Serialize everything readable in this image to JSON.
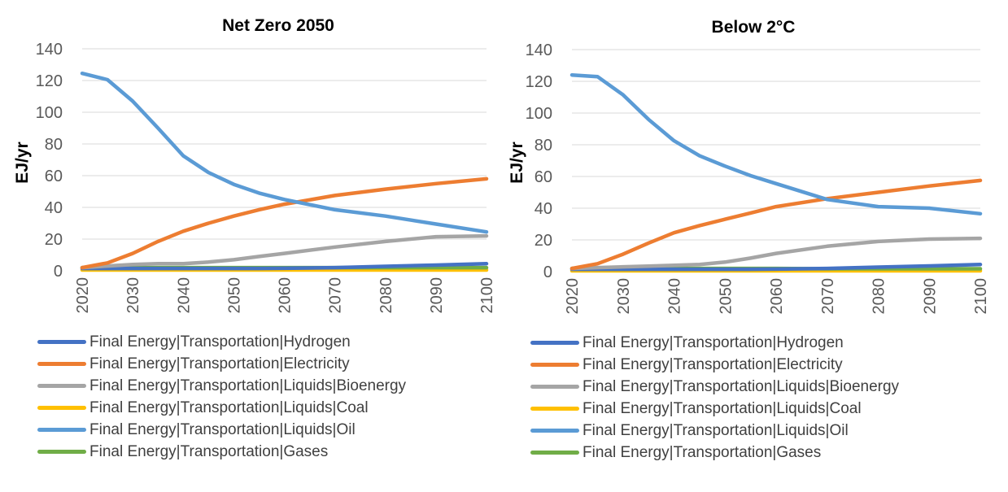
{
  "chart_data": [
    {
      "type": "line",
      "title": "Net Zero 2050",
      "ylabel": "EJ/yr",
      "xlabel": "",
      "ylim": [
        0,
        140
      ],
      "yticks": [
        0,
        20,
        40,
        60,
        80,
        100,
        120,
        140
      ],
      "xticks": [
        2020,
        2030,
        2040,
        2050,
        2060,
        2070,
        2080,
        2090,
        2100
      ],
      "x": [
        2020,
        2025,
        2030,
        2035,
        2040,
        2045,
        2050,
        2055,
        2060,
        2070,
        2080,
        2090,
        2100
      ],
      "grid": true,
      "legend_position": "bottom",
      "series": [
        {
          "name": "Final Energy|Transportation|Hydrogen",
          "color": "#4472C4",
          "values": [
            1.5,
            1.5,
            1.5,
            1.5,
            1.5,
            1.5,
            1.5,
            1.5,
            1.6,
            2,
            2.8,
            3.6,
            4.5
          ]
        },
        {
          "name": "Final Energy|Transportation|Electricity",
          "color": "#ED7D31",
          "values": [
            2,
            5,
            11,
            18.5,
            25,
            30,
            34.5,
            38.5,
            42,
            47.5,
            51.5,
            55,
            58
          ]
        },
        {
          "name": "Final Energy|Transportation|Liquids|Bioenergy",
          "color": "#A5A5A5",
          "values": [
            2,
            3,
            4,
            4.5,
            4.5,
            5.5,
            7,
            9,
            11,
            15,
            18.5,
            21.5,
            22
          ]
        },
        {
          "name": "Final Energy|Transportation|Liquids|Coal",
          "color": "#FFC000",
          "values": [
            0.5,
            0.5,
            0.5,
            0.5,
            0.5,
            0.5,
            0.5,
            0.5,
            0.5,
            0.5,
            0.5,
            0.5,
            0.5
          ]
        },
        {
          "name": "Final Energy|Transportation|Liquids|Oil",
          "color": "#5B9BD5",
          "values": [
            124.5,
            120.5,
            107,
            90,
            72.5,
            62,
            54.5,
            49,
            45,
            38.5,
            34.5,
            29.5,
            24.5
          ]
        },
        {
          "name": "Final Energy|Transportation|Gases",
          "color": "#70AD47",
          "values": [
            2,
            2,
            2,
            2,
            2,
            2,
            2,
            2,
            2,
            2,
            2,
            2,
            2
          ]
        }
      ]
    },
    {
      "type": "line",
      "title": "Below 2°C",
      "ylabel": "EJ/yr",
      "xlabel": "",
      "ylim": [
        0,
        140
      ],
      "yticks": [
        0,
        20,
        40,
        60,
        80,
        100,
        120,
        140
      ],
      "xticks": [
        2020,
        2030,
        2040,
        2050,
        2060,
        2070,
        2080,
        2090,
        2100
      ],
      "x": [
        2020,
        2025,
        2030,
        2035,
        2040,
        2045,
        2050,
        2055,
        2060,
        2070,
        2080,
        2090,
        2100
      ],
      "grid": true,
      "legend_position": "bottom",
      "series": [
        {
          "name": "Final Energy|Transportation|Hydrogen",
          "color": "#4472C4",
          "values": [
            1.5,
            1.5,
            1.5,
            1.5,
            1.5,
            1.5,
            1.5,
            1.5,
            1.6,
            2,
            2.8,
            3.6,
            4.5
          ]
        },
        {
          "name": "Final Energy|Transportation|Electricity",
          "color": "#ED7D31",
          "values": [
            2,
            5,
            11,
            18,
            24.5,
            29,
            33,
            37,
            41,
            46,
            50,
            54,
            57.5
          ]
        },
        {
          "name": "Final Energy|Transportation|Liquids|Bioenergy",
          "color": "#A5A5A5",
          "values": [
            2,
            2.5,
            3,
            3.5,
            4,
            4.5,
            6,
            8.5,
            11.5,
            16,
            19,
            20.5,
            21
          ]
        },
        {
          "name": "Final Energy|Transportation|Liquids|Coal",
          "color": "#FFC000",
          "values": [
            0.5,
            0.5,
            0.5,
            0.5,
            0.5,
            0.5,
            0.5,
            0.5,
            0.5,
            0.5,
            0.5,
            0.5,
            0.5
          ]
        },
        {
          "name": "Final Energy|Transportation|Liquids|Oil",
          "color": "#5B9BD5",
          "values": [
            124,
            123,
            111.5,
            96,
            82.5,
            73,
            66.5,
            60.5,
            55.5,
            45.5,
            41,
            40,
            36.5
          ]
        },
        {
          "name": "Final Energy|Transportation|Gases",
          "color": "#70AD47",
          "values": [
            2,
            2,
            2,
            2,
            2,
            2,
            2,
            2,
            2,
            1.8,
            1.8,
            1.8,
            1.8
          ]
        }
      ]
    }
  ]
}
